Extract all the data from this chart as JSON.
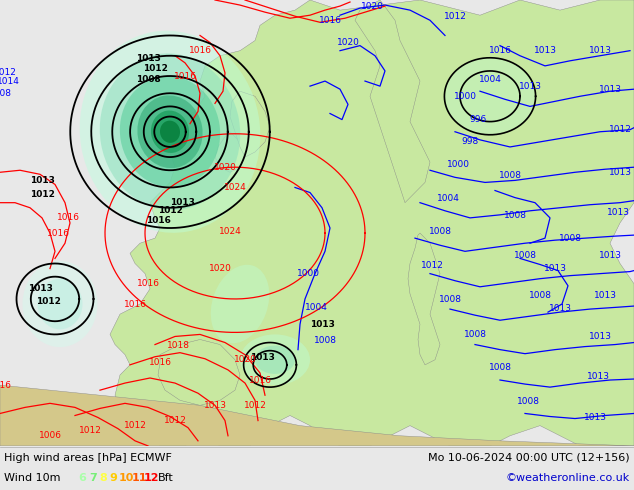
{
  "title_left": "High wind areas [hPa] ECMWF",
  "title_right": "Mo 10-06-2024 00:00 UTC (12+156)",
  "subtitle_left": "Wind 10m",
  "subtitle_right": "©weatheronline.co.uk",
  "legend_numbers": [
    "6",
    "7",
    "8",
    "9",
    "10",
    "11",
    "12"
  ],
  "legend_colors": [
    "#aaffaa",
    "#77ee77",
    "#ffff44",
    "#ffcc00",
    "#ff9900",
    "#ff5500",
    "#ff0000"
  ],
  "legend_suffix": "Bft",
  "bg_map_land": "#c8e8a0",
  "bg_map_sea": "#e8e8e8",
  "bg_bottom": "#e8e8e8",
  "figsize": [
    6.34,
    4.9
  ],
  "dpi": 100,
  "bottom_text_color": "#000000",
  "copyright_color": "#0000cc",
  "wind_colors": {
    "bft6": "#aaffcc",
    "bft7": "#88ddaa",
    "bft8": "#55cc88",
    "bft9": "#33aa66",
    "bft10": "#119944",
    "bft11": "#007722",
    "bft12": "#004400"
  }
}
